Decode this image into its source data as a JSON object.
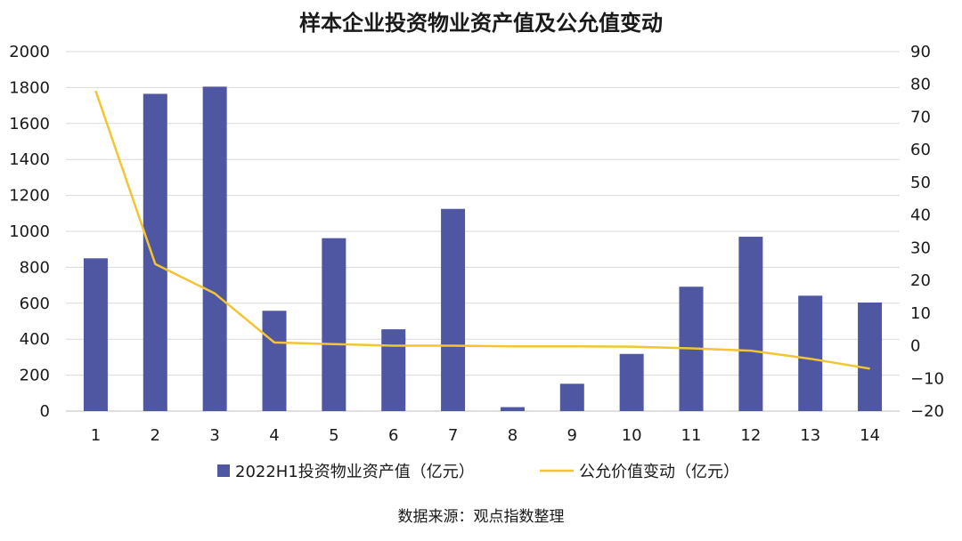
{
  "chart_data": {
    "type": "bar",
    "title": "样本企业投资物业资产值及公允值变动",
    "categories": [
      "1",
      "2",
      "3",
      "4",
      "5",
      "6",
      "7",
      "8",
      "9",
      "10",
      "11",
      "12",
      "13",
      "14"
    ],
    "series": [
      {
        "name": "2022H1投资物业资产值（亿元）",
        "type": "bar",
        "axis": "left",
        "color": "#4f57a3",
        "values": [
          850,
          1765,
          1805,
          558,
          962,
          455,
          1125,
          22,
          152,
          318,
          692,
          970,
          642,
          604
        ]
      },
      {
        "name": "公允价值变动（亿元）",
        "type": "line",
        "axis": "right",
        "color": "#f2c531",
        "values": [
          78,
          25,
          16,
          1,
          0.5,
          0,
          0,
          -0.2,
          -0.2,
          -0.3,
          -0.8,
          -1.5,
          -4,
          -7
        ]
      }
    ],
    "y_left": {
      "min": 0,
      "max": 2000,
      "step": 200
    },
    "y_right": {
      "min": -20,
      "max": 90,
      "step": 10
    },
    "grid": true,
    "legend": "bottom"
  },
  "source": "数据来源：观点指数整理"
}
